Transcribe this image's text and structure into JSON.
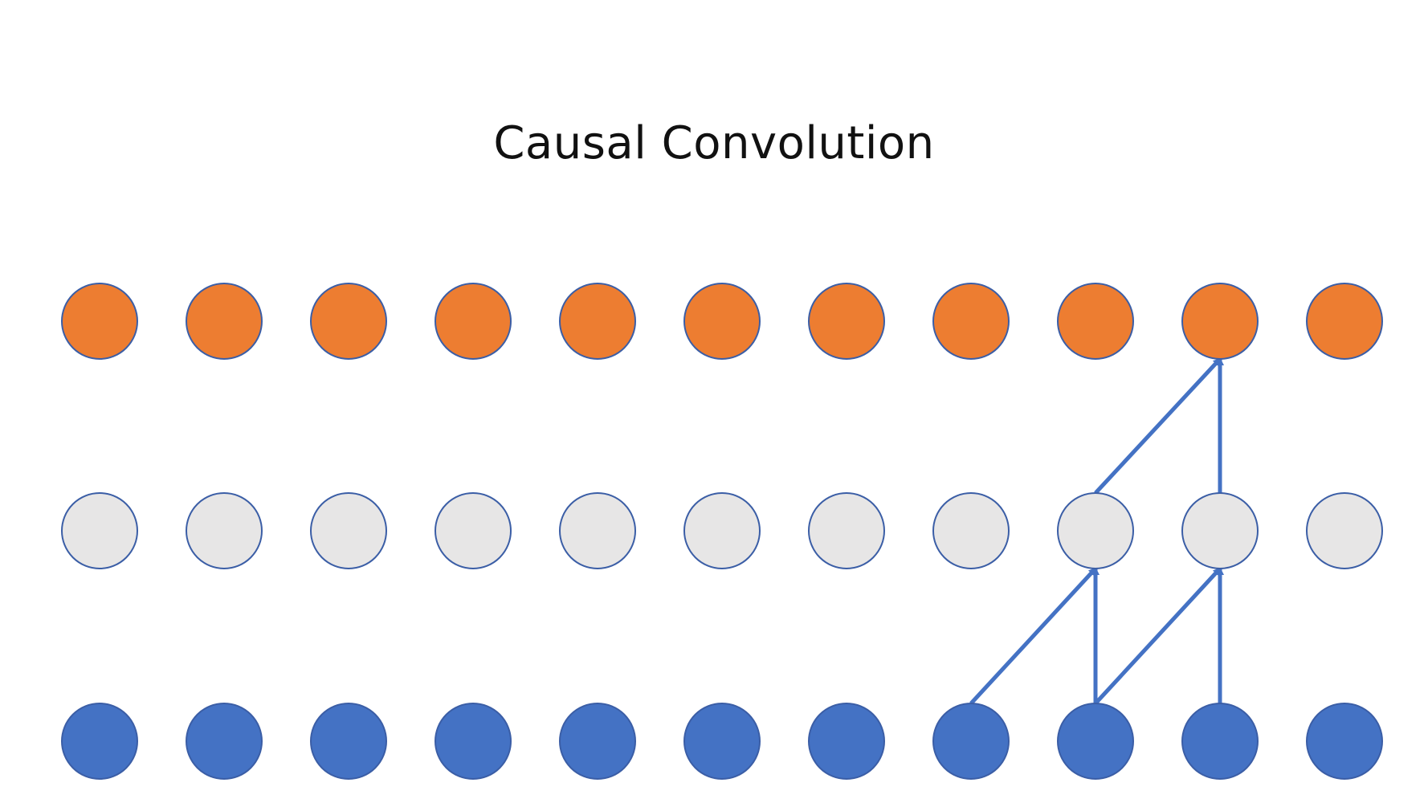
{
  "title": "Causal Convolution",
  "colors": {
    "output_fill": "#ED7D31",
    "hidden_fill": "#E7E6E6",
    "input_fill": "#4472C4",
    "node_stroke": "#3B5EA6",
    "arrow": "#4472C4",
    "title": "#111111"
  },
  "layers": [
    {
      "name": "output",
      "node_count": 11,
      "fill_key": "output_fill"
    },
    {
      "name": "hidden",
      "node_count": 11,
      "fill_key": "hidden_fill"
    },
    {
      "name": "input",
      "node_count": 11,
      "fill_key": "input_fill"
    }
  ],
  "connections": [
    {
      "from_layer": "input",
      "from_index": 7,
      "to_layer": "hidden",
      "to_index": 8
    },
    {
      "from_layer": "input",
      "from_index": 8,
      "to_layer": "hidden",
      "to_index": 8
    },
    {
      "from_layer": "input",
      "from_index": 8,
      "to_layer": "hidden",
      "to_index": 9
    },
    {
      "from_layer": "input",
      "from_index": 9,
      "to_layer": "hidden",
      "to_index": 9
    },
    {
      "from_layer": "hidden",
      "from_index": 8,
      "to_layer": "output",
      "to_index": 9
    },
    {
      "from_layer": "hidden",
      "from_index": 9,
      "to_layer": "output",
      "to_index": 9
    }
  ]
}
